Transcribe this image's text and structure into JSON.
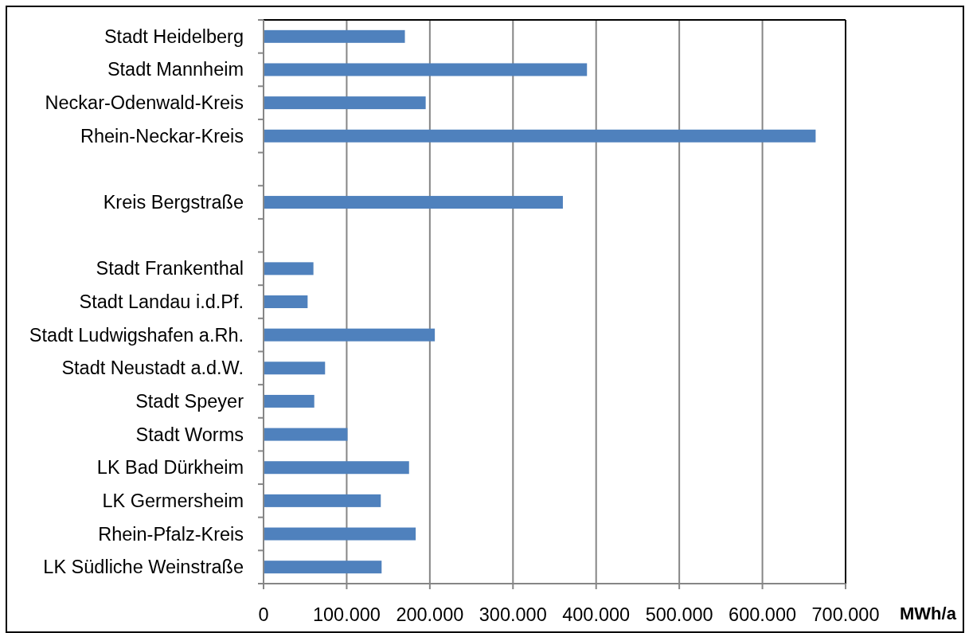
{
  "chart_data": {
    "type": "bar",
    "orientation": "horizontal",
    "categories": [
      "Stadt Heidelberg",
      "Stadt Mannheim",
      "Neckar-Odenwald-Kreis",
      "Rhein-Neckar-Kreis",
      null,
      "Kreis Bergstraße",
      null,
      "Stadt Frankenthal",
      "Stadt Landau i.d.Pf.",
      "Stadt Ludwigshafen a.Rh.",
      "Stadt Neustadt a.d.W.",
      "Stadt Speyer",
      "Stadt Worms",
      "LK Bad Dürkheim",
      "LK Germersheim",
      "Rhein-Pfalz-Kreis",
      "LK Südliche Weinstraße"
    ],
    "values": [
      170000,
      389000,
      195000,
      664000,
      null,
      360000,
      null,
      60000,
      53000,
      206000,
      74000,
      61000,
      101000,
      175000,
      141000,
      183000,
      142000
    ],
    "color": "#4f81bd",
    "xlabel": "MWh/a",
    "xlim": [
      0,
      700000
    ],
    "xticks": [
      0,
      {
        "value": 100000,
        "label": "100.000"
      },
      {
        "value": 200000,
        "label": "200.000"
      },
      {
        "value": 300000,
        "label": "300.000"
      },
      {
        "value": 400000,
        "label": "400.000"
      },
      {
        "value": 500000,
        "label": "500.000"
      },
      {
        "value": 600000,
        "label": "600.000"
      },
      {
        "value": 700000,
        "label": "700.000"
      }
    ],
    "grid": "x"
  }
}
